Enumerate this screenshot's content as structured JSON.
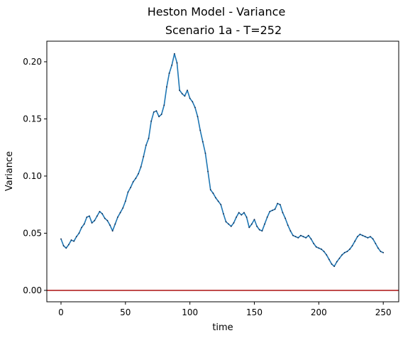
{
  "chart_data": {
    "type": "line",
    "title": "Heston Model - Variance",
    "subtitle": "Scenario 1a - T=252",
    "xlabel": "time",
    "ylabel": "Variance",
    "xlim": [
      -11,
      262
    ],
    "ylim": [
      -0.01,
      0.218
    ],
    "xticks": [
      0,
      50,
      100,
      150,
      200,
      250
    ],
    "xtick_labels": [
      "0",
      "50",
      "100",
      "150",
      "200",
      "250"
    ],
    "yticks": [
      0.0,
      0.05,
      0.1,
      0.15,
      0.2
    ],
    "ytick_labels": [
      "0.00",
      "0.05",
      "0.10",
      "0.15",
      "0.20"
    ],
    "grid": false,
    "reference_line": {
      "y": 0.0,
      "color": "#b22222"
    },
    "series": [
      {
        "color": "#1f77b4",
        "marker_color": "#13284b",
        "x": [
          0,
          2,
          4,
          6,
          8,
          10,
          12,
          14,
          16,
          18,
          20,
          22,
          24,
          26,
          28,
          30,
          32,
          34,
          36,
          38,
          40,
          42,
          44,
          46,
          48,
          50,
          52,
          54,
          56,
          58,
          60,
          62,
          64,
          66,
          68,
          70,
          72,
          74,
          76,
          78,
          80,
          82,
          84,
          86,
          88,
          90,
          92,
          94,
          96,
          98,
          100,
          102,
          104,
          106,
          108,
          110,
          112,
          114,
          116,
          118,
          120,
          122,
          124,
          126,
          128,
          130,
          132,
          134,
          136,
          138,
          140,
          142,
          144,
          146,
          148,
          150,
          152,
          154,
          156,
          158,
          160,
          162,
          164,
          166,
          168,
          170,
          172,
          174,
          176,
          178,
          180,
          182,
          184,
          186,
          188,
          190,
          192,
          194,
          196,
          198,
          200,
          202,
          204,
          206,
          208,
          210,
          212,
          214,
          216,
          218,
          220,
          222,
          224,
          226,
          228,
          230,
          232,
          234,
          236,
          238,
          240,
          242,
          244,
          246,
          248,
          250
        ],
        "y": [
          0.045,
          0.039,
          0.037,
          0.04,
          0.044,
          0.043,
          0.047,
          0.05,
          0.055,
          0.058,
          0.064,
          0.065,
          0.059,
          0.061,
          0.065,
          0.069,
          0.067,
          0.063,
          0.061,
          0.057,
          0.052,
          0.058,
          0.064,
          0.068,
          0.072,
          0.078,
          0.086,
          0.09,
          0.095,
          0.098,
          0.102,
          0.108,
          0.117,
          0.127,
          0.133,
          0.148,
          0.156,
          0.157,
          0.152,
          0.154,
          0.162,
          0.178,
          0.19,
          0.197,
          0.207,
          0.199,
          0.175,
          0.172,
          0.17,
          0.175,
          0.168,
          0.165,
          0.16,
          0.152,
          0.14,
          0.13,
          0.12,
          0.104,
          0.088,
          0.085,
          0.081,
          0.078,
          0.075,
          0.067,
          0.06,
          0.058,
          0.056,
          0.059,
          0.064,
          0.068,
          0.066,
          0.068,
          0.064,
          0.055,
          0.058,
          0.062,
          0.056,
          0.053,
          0.052,
          0.058,
          0.064,
          0.069,
          0.07,
          0.071,
          0.076,
          0.075,
          0.068,
          0.063,
          0.057,
          0.052,
          0.048,
          0.047,
          0.046,
          0.048,
          0.047,
          0.046,
          0.048,
          0.045,
          0.041,
          0.038,
          0.037,
          0.036,
          0.034,
          0.031,
          0.027,
          0.023,
          0.021,
          0.025,
          0.028,
          0.031,
          0.033,
          0.034,
          0.036,
          0.039,
          0.043,
          0.047,
          0.049,
          0.048,
          0.047,
          0.046,
          0.047,
          0.045,
          0.041,
          0.037,
          0.034,
          0.033
        ]
      }
    ]
  }
}
